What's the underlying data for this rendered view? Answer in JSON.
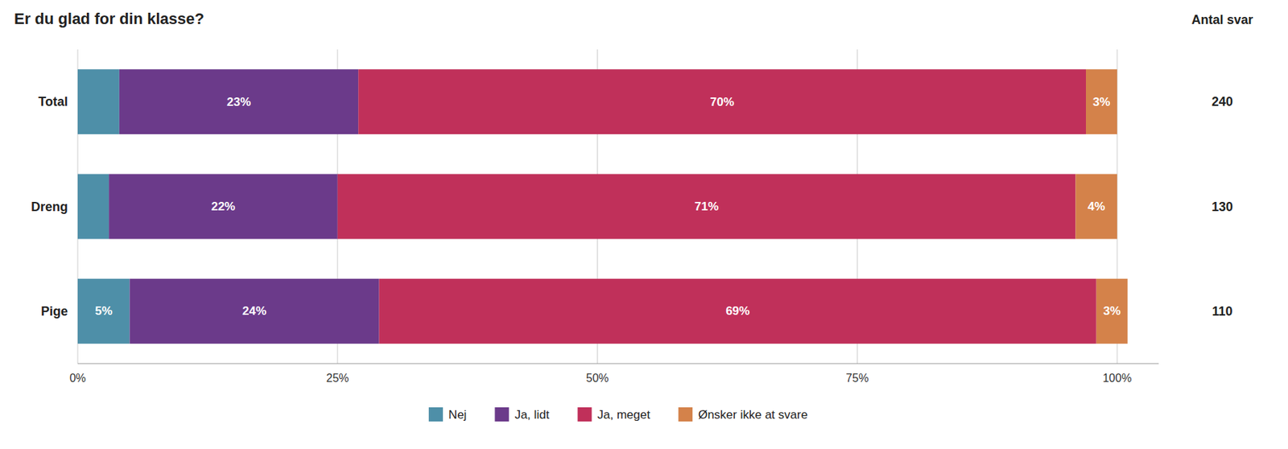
{
  "chart_data": {
    "type": "bar",
    "orientation": "horizontal",
    "stacked": true,
    "title": "Er du glad for din klasse?",
    "categories": [
      "Total",
      "Dreng",
      "Pige"
    ],
    "series": [
      {
        "name": "Nej",
        "color": "#4e8fa8",
        "values": [
          4,
          3,
          5
        ],
        "value_labels": [
          null,
          null,
          "5%"
        ]
      },
      {
        "name": "Ja, lidt",
        "color": "#6b3a8a",
        "values": [
          23,
          22,
          24
        ],
        "value_labels": [
          "23%",
          "22%",
          "24%"
        ]
      },
      {
        "name": "Ja, meget",
        "color": "#c0305a",
        "values": [
          70,
          71,
          69
        ],
        "value_labels": [
          "70%",
          "71%",
          "69%"
        ]
      },
      {
        "name": "Ønsker ikke at svare",
        "color": "#d4824a",
        "values": [
          3,
          4,
          3
        ],
        "value_labels": [
          "3%",
          "4%",
          "3%"
        ]
      }
    ],
    "right_label": "Antal svar",
    "counts": [
      240,
      130,
      110
    ],
    "xlim": [
      0,
      104
    ],
    "xticks": [
      {
        "value": 0,
        "label": "0%"
      },
      {
        "value": 25,
        "label": "25%"
      },
      {
        "value": 50,
        "label": "50%"
      },
      {
        "value": 75,
        "label": "75%"
      },
      {
        "value": 100,
        "label": "100%"
      }
    ],
    "grid": true,
    "data_labels": true,
    "legend": "bottom"
  }
}
